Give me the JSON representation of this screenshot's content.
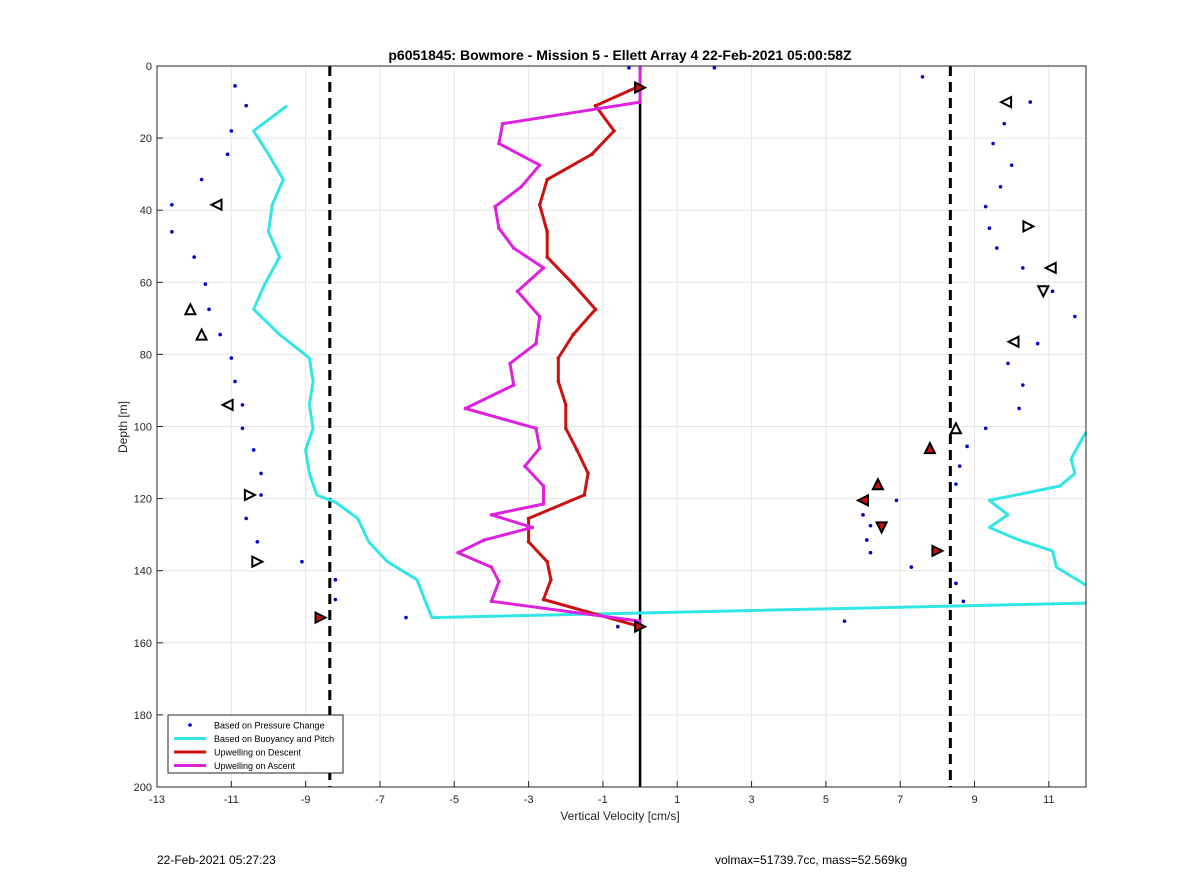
{
  "footer": {
    "timestamp": "22-Feb-2021 05:27:23",
    "info": "volmax=51739.7cc, mass=52.569kg"
  },
  "chart_data": {
    "type": "line",
    "title": "p6051845: Bowmore - Mission 5 - Ellett Array 4 22-Feb-2021 05:00:58Z",
    "xlabel": "Vertical Velocity [cm/s]",
    "ylabel": "Depth [m]",
    "xlim": [
      -13,
      12
    ],
    "ylim": [
      0,
      200
    ],
    "y_reversed": true,
    "grid": true,
    "xticks": [
      -13,
      -11,
      -9,
      -7,
      -5,
      -3,
      -1,
      1,
      3,
      5,
      7,
      9,
      11
    ],
    "yticks": [
      0,
      20,
      40,
      60,
      80,
      100,
      120,
      140,
      160,
      180,
      200
    ],
    "legend_position": "bottom-left",
    "vertical_lines": [
      {
        "x": 0,
        "style": "solid",
        "color": "#000000"
      },
      {
        "x": -8.35,
        "style": "dashed",
        "color": "#000000"
      },
      {
        "x": 8.35,
        "style": "dashed",
        "color": "#000000"
      }
    ],
    "series": [
      {
        "name": "Based on Pressure Change",
        "kind": "points",
        "color": "#0000cc",
        "points": [
          [
            -10.9,
            5.5
          ],
          [
            -10.6,
            11
          ],
          [
            -11.0,
            18
          ],
          [
            -11.1,
            24.5
          ],
          [
            -11.8,
            31.5
          ],
          [
            -12.6,
            38.5
          ],
          [
            -12.6,
            46
          ],
          [
            -12.0,
            53
          ],
          [
            -11.7,
            60.5
          ],
          [
            -11.6,
            67.5
          ],
          [
            -11.3,
            74.5
          ],
          [
            -11.0,
            81
          ],
          [
            -10.9,
            87.5
          ],
          [
            -10.7,
            94
          ],
          [
            -10.7,
            100.5
          ],
          [
            -10.4,
            106.5
          ],
          [
            -10.2,
            113
          ],
          [
            -10.2,
            119
          ],
          [
            -10.6,
            125.5
          ],
          [
            -10.3,
            132
          ],
          [
            -9.1,
            137.5
          ],
          [
            -8.2,
            142.5
          ],
          [
            -8.2,
            148
          ],
          [
            -6.3,
            153
          ],
          [
            -0.6,
            155.5
          ],
          [
            -0.3,
            0.5
          ],
          [
            2.0,
            0.5
          ],
          [
            7.6,
            3
          ],
          [
            10.5,
            10
          ],
          [
            9.8,
            16
          ],
          [
            9.5,
            21.5
          ],
          [
            10.0,
            27.5
          ],
          [
            9.7,
            33.5
          ],
          [
            9.3,
            39
          ],
          [
            9.4,
            45
          ],
          [
            9.6,
            50.5
          ],
          [
            10.3,
            56
          ],
          [
            11.1,
            62.5
          ],
          [
            11.7,
            69.5
          ],
          [
            10.7,
            77
          ],
          [
            9.9,
            82.5
          ],
          [
            10.3,
            88.5
          ],
          [
            10.2,
            95
          ],
          [
            9.3,
            100.5
          ],
          [
            8.8,
            105.5
          ],
          [
            8.6,
            111
          ],
          [
            8.5,
            116
          ],
          [
            6.9,
            120.5
          ],
          [
            6.0,
            124.5
          ],
          [
            6.2,
            127.5
          ],
          [
            6.1,
            131.5
          ],
          [
            6.2,
            135
          ],
          [
            5.5,
            154
          ],
          [
            7.3,
            139
          ],
          [
            8.5,
            143.5
          ],
          [
            8.7,
            148.5
          ]
        ]
      },
      {
        "name": "Based on Buoyancy and Pitch",
        "kind": "line",
        "color": "#33e6e6",
        "width": 3,
        "segments": [
          [
            [
              -9.5,
              11
            ],
            [
              -10.4,
              18
            ],
            [
              -10.0,
              24.5
            ],
            [
              -9.6,
              31.5
            ],
            [
              -9.9,
              38.5
            ],
            [
              -10.0,
              46
            ],
            [
              -9.7,
              53
            ],
            [
              -10.1,
              60.5
            ],
            [
              -10.4,
              67.5
            ],
            [
              -9.7,
              74.5
            ],
            [
              -8.9,
              81
            ],
            [
              -8.8,
              87.5
            ],
            [
              -8.9,
              94
            ],
            [
              -8.8,
              100.5
            ],
            [
              -9.0,
              106.5
            ],
            [
              -8.9,
              113
            ],
            [
              -8.7,
              119
            ],
            [
              -8.2,
              121
            ],
            [
              -7.6,
              125.5
            ],
            [
              -7.3,
              132
            ],
            [
              -6.8,
              137.5
            ],
            [
              -6.0,
              142.5
            ],
            [
              -5.8,
              148
            ],
            [
              -5.6,
              153
            ],
            [
              12.0,
              149
            ]
          ],
          [
            [
              12.0,
              101.5
            ],
            [
              11.6,
              109
            ],
            [
              11.7,
              113
            ],
            [
              11.3,
              116.5
            ],
            [
              9.4,
              120.5
            ],
            [
              9.9,
              124.5
            ],
            [
              9.4,
              128
            ],
            [
              10.2,
              131.5
            ],
            [
              11.1,
              134.5
            ],
            [
              11.2,
              139
            ],
            [
              12.0,
              144
            ]
          ]
        ]
      },
      {
        "name": "Upwelling on Descent",
        "kind": "line",
        "color": "#cc1111",
        "width": 3,
        "points": [
          [
            0,
            5.5
          ],
          [
            -1.2,
            11
          ],
          [
            -0.7,
            18
          ],
          [
            -1.3,
            24.5
          ],
          [
            -2.5,
            31.5
          ],
          [
            -2.7,
            38.5
          ],
          [
            -2.5,
            46
          ],
          [
            -2.5,
            53
          ],
          [
            -1.8,
            60.5
          ],
          [
            -1.2,
            67.5
          ],
          [
            -1.8,
            74.5
          ],
          [
            -2.2,
            81
          ],
          [
            -2.2,
            87.5
          ],
          [
            -2.0,
            94
          ],
          [
            -2.0,
            100.5
          ],
          [
            -1.7,
            106.5
          ],
          [
            -1.4,
            113
          ],
          [
            -1.5,
            119
          ],
          [
            -3.0,
            125.5
          ],
          [
            -3.0,
            132
          ],
          [
            -2.5,
            137.5
          ],
          [
            -2.4,
            142.5
          ],
          [
            -2.6,
            148
          ],
          [
            0,
            155.5
          ]
        ]
      },
      {
        "name": "Upwelling on Ascent",
        "kind": "line",
        "color": "#dd22dd",
        "width": 3,
        "points": [
          [
            0,
            0.5
          ],
          [
            0,
            10
          ],
          [
            -3.7,
            16
          ],
          [
            -3.8,
            21.5
          ],
          [
            -2.7,
            27.5
          ],
          [
            -3.2,
            33.5
          ],
          [
            -3.9,
            39
          ],
          [
            -3.8,
            45
          ],
          [
            -3.4,
            50.5
          ],
          [
            -2.6,
            56
          ],
          [
            -3.3,
            62.5
          ],
          [
            -2.7,
            69.5
          ],
          [
            -2.8,
            77
          ],
          [
            -3.5,
            82.5
          ],
          [
            -3.4,
            88.5
          ],
          [
            -4.7,
            95
          ],
          [
            -2.8,
            100.5
          ],
          [
            -2.7,
            106
          ],
          [
            -3.1,
            111
          ],
          [
            -2.6,
            116.5
          ],
          [
            -2.6,
            121.5
          ],
          [
            -4.0,
            124.5
          ],
          [
            -2.9,
            128
          ],
          [
            -4.2,
            131.5
          ],
          [
            -4.9,
            135
          ],
          [
            -4.0,
            139
          ],
          [
            -3.8,
            143
          ],
          [
            -4.0,
            148.5
          ],
          [
            0,
            154
          ]
        ]
      }
    ],
    "markers": [
      {
        "x": 9.85,
        "y": 10,
        "dir": "left",
        "fill": "none"
      },
      {
        "x": -11.4,
        "y": 38.5,
        "dir": "left",
        "fill": "none"
      },
      {
        "x": 10.45,
        "y": 44.5,
        "dir": "right",
        "fill": "none"
      },
      {
        "x": 11.05,
        "y": 56,
        "dir": "left",
        "fill": "none"
      },
      {
        "x": 10.85,
        "y": 62.5,
        "dir": "down",
        "fill": "none"
      },
      {
        "x": -12.1,
        "y": 67.5,
        "dir": "up",
        "fill": "none"
      },
      {
        "x": -11.8,
        "y": 74.5,
        "dir": "up",
        "fill": "none"
      },
      {
        "x": 10.05,
        "y": 76.5,
        "dir": "left",
        "fill": "none"
      },
      {
        "x": -11.1,
        "y": 94,
        "dir": "left",
        "fill": "none"
      },
      {
        "x": 8.5,
        "y": 100.5,
        "dir": "up",
        "fill": "none"
      },
      {
        "x": 7.8,
        "y": 106,
        "dir": "up",
        "fill": "#cc1111"
      },
      {
        "x": 6.4,
        "y": 116,
        "dir": "up",
        "fill": "#cc1111"
      },
      {
        "x": -10.5,
        "y": 119,
        "dir": "right",
        "fill": "none"
      },
      {
        "x": 6.0,
        "y": 120.5,
        "dir": "left",
        "fill": "#cc1111"
      },
      {
        "x": 6.5,
        "y": 128,
        "dir": "down",
        "fill": "#cc1111"
      },
      {
        "x": 8.0,
        "y": 134.5,
        "dir": "right",
        "fill": "#cc1111"
      },
      {
        "x": -10.3,
        "y": 137.5,
        "dir": "right",
        "fill": "none"
      },
      {
        "x": -8.6,
        "y": 153,
        "dir": "right",
        "fill": "#cc1111"
      },
      {
        "x": 0,
        "y": 6,
        "dir": "right",
        "fill": "#cc1111"
      },
      {
        "x": 0,
        "y": 155.5,
        "dir": "right",
        "fill": "#cc1111"
      }
    ]
  }
}
